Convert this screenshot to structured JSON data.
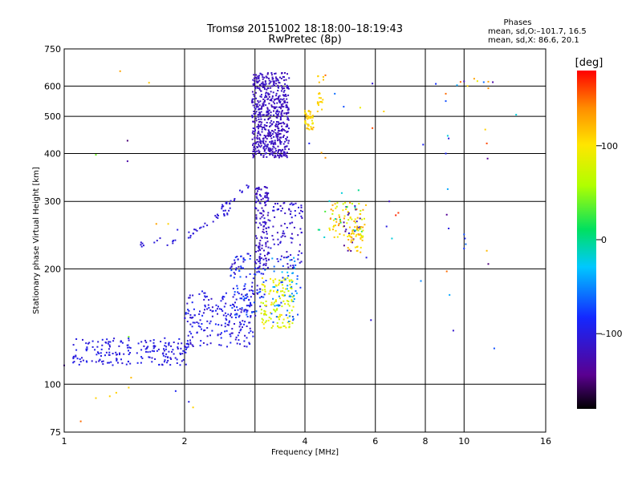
{
  "header": {
    "title": "Tromsø 20151002 18:18:00–18:19:43",
    "subtitle": "RwPretec (8p)",
    "stats_title": "Phases",
    "stats_o": "mean, sd,O:–101.7, 16.5",
    "stats_x": "mean, sd,X:  86.6, 20.1"
  },
  "colorbar": {
    "label": "[deg]",
    "min": -180,
    "max": 180,
    "ticks": [
      "100",
      "0",
      "–100"
    ],
    "tick_values": [
      100,
      0,
      -100
    ]
  },
  "chart_data": {
    "type": "scatter",
    "xlabel": "Frequency [MHz]",
    "ylabel": "Stationary phase Virtual Height [km]",
    "x_scale": "log",
    "y_scale": "log",
    "xlim": [
      1,
      16
    ],
    "ylim": [
      75,
      750
    ],
    "x_ticks": [
      1,
      2,
      4,
      6,
      8,
      10,
      16
    ],
    "x_tick_labels": [
      "1",
      "2",
      "4",
      "6",
      "8",
      "10",
      "16"
    ],
    "x_grid": [
      2,
      3,
      4,
      6,
      8,
      10
    ],
    "y_ticks": [
      75,
      100,
      200,
      300,
      400,
      500,
      600,
      750
    ],
    "y_tick_labels": [
      "75",
      "100",
      "200",
      "300",
      "400",
      "500",
      "600",
      "750"
    ],
    "y_grid": [
      100,
      200,
      300,
      400,
      500,
      600
    ],
    "grid": true,
    "color_encodes": "phase [deg]",
    "clusters": [
      {
        "f": [
          1.05,
          2.05
        ],
        "h": [
          112,
          132
        ],
        "phase": [
          -110,
          -90
        ],
        "n": 200
      },
      {
        "f": [
          2.0,
          3.0
        ],
        "h": [
          125,
          175
        ],
        "phase": [
          -115,
          -85
        ],
        "n": 200
      },
      {
        "f": [
          2.6,
          3.2
        ],
        "h": [
          150,
          220
        ],
        "phase": [
          -120,
          -60
        ],
        "n": 120
      },
      {
        "f": [
          3.1,
          3.75
        ],
        "h": [
          140,
          190
        ],
        "phase": [
          60,
          110
        ],
        "n": 130
      },
      {
        "f": [
          3.3,
          3.9
        ],
        "h": [
          145,
          215
        ],
        "phase": [
          -80,
          -30
        ],
        "n": 60
      },
      {
        "f": [
          3.0,
          3.25
        ],
        "h": [
          200,
          330
        ],
        "phase": [
          -125,
          -105
        ],
        "n": 140
      },
      {
        "f": [
          3.25,
          3.95
        ],
        "h": [
          200,
          300
        ],
        "phase": [
          -120,
          -100
        ],
        "n": 90
      },
      {
        "f": [
          2.95,
          3.65
        ],
        "h": [
          390,
          650
        ],
        "phase": [
          -125,
          -110
        ],
        "n": 600
      },
      {
        "f": [
          4.0,
          4.2
        ],
        "h": [
          460,
          520
        ],
        "phase": [
          90,
          125
        ],
        "n": 50
      },
      {
        "f": [
          4.3,
          4.45
        ],
        "h": [
          510,
          640
        ],
        "phase": [
          100,
          120
        ],
        "n": 20
      },
      {
        "f": [
          4.6,
          5.7
        ],
        "h": [
          240,
          300
        ],
        "phase": [
          60,
          140
        ],
        "n": 80
      },
      {
        "f": [
          5.0,
          5.5
        ],
        "h": [
          220,
          300
        ],
        "phase": [
          -150,
          -100
        ],
        "n": 20
      },
      {
        "f": [
          4.3,
          5.6
        ],
        "h": [
          220,
          330
        ],
        "phase": [
          -20,
          30
        ],
        "n": 15
      },
      {
        "f": [
          5.1,
          5.6
        ],
        "h": [
          220,
          260
        ],
        "phase": [
          90,
          130
        ],
        "n": 35
      }
    ],
    "tracks": [
      {
        "f": [
          1.55,
          1.75
        ],
        "h": [
          232,
          240
        ],
        "phase": [
          -110,
          -100
        ],
        "n": 8
      },
      {
        "f": [
          1.8,
          2.05
        ],
        "h": [
          232,
          245
        ],
        "phase": [
          -110,
          -100
        ],
        "n": 6
      },
      {
        "f": [
          2.05,
          2.6
        ],
        "h": [
          245,
          285
        ],
        "phase": [
          -110,
          -100
        ],
        "n": 28
      },
      {
        "f": [
          2.45,
          2.9
        ],
        "h": [
          285,
          330
        ],
        "phase": [
          -110,
          -100
        ],
        "n": 18
      }
    ],
    "scattered": [
      {
        "x": 1.38,
        "y": 656,
        "phase": 130
      },
      {
        "x": 1.63,
        "y": 612,
        "phase": 115
      },
      {
        "x": 1.44,
        "y": 432,
        "phase": -150
      },
      {
        "x": 1.44,
        "y": 382,
        "phase": -130
      },
      {
        "x": 1.2,
        "y": 397,
        "phase": 40
      },
      {
        "x": 1.1,
        "y": 80,
        "phase": 150
      },
      {
        "x": 1.2,
        "y": 92,
        "phase": 110
      },
      {
        "x": 1.3,
        "y": 93,
        "phase": 110
      },
      {
        "x": 1.35,
        "y": 95,
        "phase": 110
      },
      {
        "x": 1.45,
        "y": 98,
        "phase": 110
      },
      {
        "x": 1.9,
        "y": 96,
        "phase": -90
      },
      {
        "x": 2.05,
        "y": 90,
        "phase": -100
      },
      {
        "x": 2.1,
        "y": 87,
        "phase": 110
      },
      {
        "x": 1.47,
        "y": 104,
        "phase": 120
      },
      {
        "x": 1.0,
        "y": 112,
        "phase": -130
      },
      {
        "x": 1.45,
        "y": 133,
        "phase": 40
      },
      {
        "x": 1.7,
        "y": 262,
        "phase": 130
      },
      {
        "x": 1.82,
        "y": 262,
        "phase": 110
      },
      {
        "x": 1.92,
        "y": 253,
        "phase": -100
      },
      {
        "x": 4.5,
        "y": 640,
        "phase": 150
      },
      {
        "x": 4.75,
        "y": 573,
        "phase": -60
      },
      {
        "x": 5.0,
        "y": 530,
        "phase": -70
      },
      {
        "x": 4.1,
        "y": 425,
        "phase": -90
      },
      {
        "x": 4.4,
        "y": 402,
        "phase": 130
      },
      {
        "x": 4.5,
        "y": 390,
        "phase": 140
      },
      {
        "x": 5.9,
        "y": 609,
        "phase": -110
      },
      {
        "x": 5.5,
        "y": 527,
        "phase": 90
      },
      {
        "x": 6.3,
        "y": 515,
        "phase": 110
      },
      {
        "x": 5.9,
        "y": 466,
        "phase": 160
      },
      {
        "x": 6.5,
        "y": 300,
        "phase": -120
      },
      {
        "x": 6.75,
        "y": 276,
        "phase": 170
      },
      {
        "x": 6.85,
        "y": 280,
        "phase": 165
      },
      {
        "x": 6.4,
        "y": 258,
        "phase": -100
      },
      {
        "x": 6.6,
        "y": 240,
        "phase": -20
      },
      {
        "x": 5.7,
        "y": 214,
        "phase": -100
      },
      {
        "x": 5.85,
        "y": 147,
        "phase": -110
      },
      {
        "x": 7.8,
        "y": 186,
        "phase": -50
      },
      {
        "x": 7.9,
        "y": 422,
        "phase": -90
      },
      {
        "x": 8.5,
        "y": 608,
        "phase": -80
      },
      {
        "x": 9.0,
        "y": 573,
        "phase": 150
      },
      {
        "x": 9.0,
        "y": 548,
        "phase": -70
      },
      {
        "x": 9.1,
        "y": 445,
        "phase": -20
      },
      {
        "x": 9.15,
        "y": 438,
        "phase": -100
      },
      {
        "x": 9.0,
        "y": 400,
        "phase": -90
      },
      {
        "x": 9.1,
        "y": 323,
        "phase": -40
      },
      {
        "x": 9.05,
        "y": 277,
        "phase": -140
      },
      {
        "x": 9.15,
        "y": 255,
        "phase": -100
      },
      {
        "x": 9.05,
        "y": 197,
        "phase": 150
      },
      {
        "x": 9.2,
        "y": 171,
        "phase": -40
      },
      {
        "x": 9.4,
        "y": 138,
        "phase": -110
      },
      {
        "x": 9.6,
        "y": 603,
        "phase": -40
      },
      {
        "x": 9.8,
        "y": 615,
        "phase": 150
      },
      {
        "x": 10.0,
        "y": 617,
        "phase": -120
      },
      {
        "x": 10.2,
        "y": 600,
        "phase": 110
      },
      {
        "x": 10.6,
        "y": 627,
        "phase": 130
      },
      {
        "x": 10.8,
        "y": 618,
        "phase": 90
      },
      {
        "x": 11.2,
        "y": 614,
        "phase": -60
      },
      {
        "x": 11.5,
        "y": 616,
        "phase": 130
      },
      {
        "x": 11.8,
        "y": 614,
        "phase": -130
      },
      {
        "x": 11.5,
        "y": 592,
        "phase": 140
      },
      {
        "x": 11.3,
        "y": 462,
        "phase": 110
      },
      {
        "x": 11.4,
        "y": 425,
        "phase": 160
      },
      {
        "x": 11.45,
        "y": 388,
        "phase": -140
      },
      {
        "x": 10.0,
        "y": 246,
        "phase": -70
      },
      {
        "x": 10.05,
        "y": 240,
        "phase": -90
      },
      {
        "x": 10.1,
        "y": 232,
        "phase": -60
      },
      {
        "x": 10.0,
        "y": 226,
        "phase": -80
      },
      {
        "x": 11.4,
        "y": 223,
        "phase": 120
      },
      {
        "x": 11.5,
        "y": 206,
        "phase": -150
      },
      {
        "x": 11.9,
        "y": 124,
        "phase": -70
      },
      {
        "x": 13.5,
        "y": 505,
        "phase": -20
      }
    ]
  }
}
